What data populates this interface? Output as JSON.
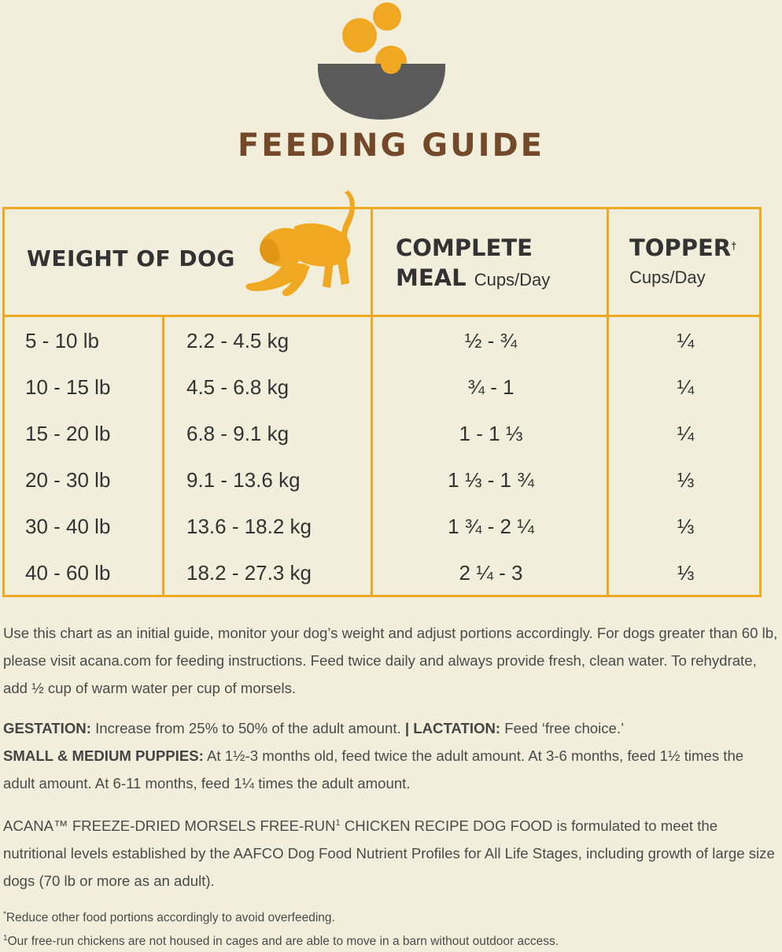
{
  "header": {
    "title": "FEEDING GUIDE"
  },
  "table": {
    "weight_header": "WEIGHT OF DOG",
    "meal_header": "COMPLETE",
    "meal_header_2": "MEAL",
    "meal_unit": "Cups/Day",
    "topper_header": "TOPPER",
    "topper_mark": "†",
    "topper_unit": "Cups/Day",
    "rows": [
      {
        "lb": "5 - 10 lb",
        "kg": "2.2 - 4.5 kg",
        "meal": "½ - ¾",
        "topper": "¼"
      },
      {
        "lb": "10 - 15 lb",
        "kg": "4.5 - 6.8 kg",
        "meal": "¾ -  1",
        "topper": "¼"
      },
      {
        "lb": "15 - 20 lb",
        "kg": "6.8 - 9.1 kg",
        "meal": "1 - 1 ⅓",
        "topper": "¼"
      },
      {
        "lb": "20 - 30 lb",
        "kg": "9.1 - 13.6 kg",
        "meal": "1 ⅓ - 1 ¾",
        "topper": "⅓"
      },
      {
        "lb": "30 - 40 lb",
        "kg": "13.6 - 18.2 kg",
        "meal": "1 ¾ - 2 ¼",
        "topper": "⅓"
      },
      {
        "lb": "40 - 60 lb",
        "kg": "18.2 - 27.3 kg",
        "meal": "2 ¼ - 3",
        "topper": "⅓"
      }
    ]
  },
  "notes": {
    "intro": "Use this chart as an initial guide, monitor your dog’s weight and adjust portions accordingly. For dogs greater than 60 lb, please visit acana.com for feeding instructions. Feed twice daily and always provide fresh, clean water. To rehydrate, add ½ cup of warm water per cup of morsels.",
    "gestation_label": "GESTATION:",
    "gestation_text": " Increase from 25% to 50% of the adult amount. ",
    "separator": "|",
    "lactation_label": " LACTATION:",
    "lactation_text": " Feed ‘free choice.’",
    "puppies_label": "SMALL & MEDIUM PUPPIES:",
    "puppies_text": " At 1½-3 months old, feed twice the adult amount. At 3-6 months, feed 1½ times the adult amount. At 6-11 months, feed 1¼ times the adult amount.",
    "aafco_a": "ACANA™ FREEZE-DRIED MORSELS FREE-RUN",
    "aafco_mark": "1",
    "aafco_b": " CHICKEN RECIPE DOG FOOD is formulated to meet the nutritional levels established by the AAFCO Dog Food Nutrient Profiles for All Life Stages, including growth of large size dogs (70 lb or more as an adult)."
  },
  "footnotes": {
    "fn1_mark": "*",
    "fn1": "Reduce other food portions accordingly to avoid overfeeding.",
    "fn2_mark": "1",
    "fn2": "Our free-run chickens are not housed in cages and are able to move in a barn without outdoor access."
  },
  "colors": {
    "background": "#f1efdc",
    "accent_orange": "#f0a823",
    "title_brown": "#74492a",
    "bowl_gray": "#5a5a5a"
  },
  "icons": [
    "bowl-icon",
    "dog-icon"
  ]
}
